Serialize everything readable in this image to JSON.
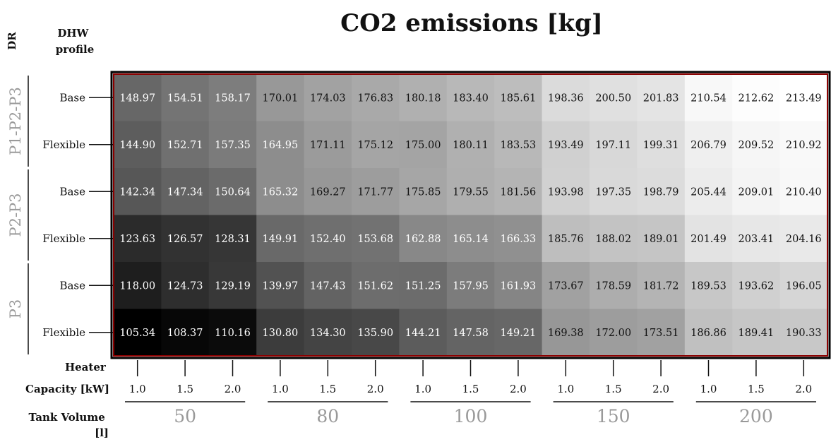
{
  "chart_data": {
    "type": "heatmap",
    "title": "CO2 emissions [kg]",
    "row_axis_labels": {
      "group": "DR",
      "profile": "DHW profile"
    },
    "column_axis_labels": {
      "capacity": "Heater Capacity [kW]",
      "volume": "Tank Volume [l]"
    },
    "row_groups": [
      {
        "label": "P1-P2-P3",
        "profiles": [
          "Base",
          "Flexible"
        ]
      },
      {
        "label": "P2-P3",
        "profiles": [
          "Base",
          "Flexible"
        ]
      },
      {
        "label": "P3",
        "profiles": [
          "Base",
          "Flexible"
        ]
      }
    ],
    "column_groups": [
      {
        "label": "50",
        "capacities": [
          "1.0",
          "1.5",
          "2.0"
        ]
      },
      {
        "label": "80",
        "capacities": [
          "1.0",
          "1.5",
          "2.0"
        ]
      },
      {
        "label": "100",
        "capacities": [
          "1.0",
          "1.5",
          "2.0"
        ]
      },
      {
        "label": "150",
        "capacities": [
          "1.0",
          "1.5",
          "2.0"
        ]
      },
      {
        "label": "200",
        "capacities": [
          "1.0",
          "1.5",
          "2.0"
        ]
      }
    ],
    "values": [
      [
        "148.97",
        "154.51",
        "158.17",
        "170.01",
        "174.03",
        "176.83",
        "180.18",
        "183.40",
        "185.61",
        "198.36",
        "200.50",
        "201.83",
        "210.54",
        "212.62",
        "213.49"
      ],
      [
        "144.90",
        "152.71",
        "157.35",
        "164.95",
        "171.11",
        "175.12",
        "175.00",
        "180.11",
        "183.53",
        "193.49",
        "197.11",
        "199.31",
        "206.79",
        "209.52",
        "210.92"
      ],
      [
        "142.34",
        "147.34",
        "150.64",
        "165.32",
        "169.27",
        "171.77",
        "175.85",
        "179.55",
        "181.56",
        "193.98",
        "197.35",
        "198.79",
        "205.44",
        "209.01",
        "210.40"
      ],
      [
        "123.63",
        "126.57",
        "128.31",
        "149.91",
        "152.40",
        "153.68",
        "162.88",
        "165.14",
        "166.33",
        "185.76",
        "188.02",
        "189.01",
        "201.49",
        "203.41",
        "204.16"
      ],
      [
        "118.00",
        "124.73",
        "129.19",
        "139.97",
        "147.43",
        "151.62",
        "151.25",
        "157.95",
        "161.93",
        "173.67",
        "178.59",
        "181.72",
        "189.53",
        "193.62",
        "196.05"
      ],
      [
        "105.34",
        "108.37",
        "110.16",
        "130.80",
        "134.30",
        "135.90",
        "144.21",
        "147.58",
        "149.21",
        "169.38",
        "172.00",
        "173.51",
        "186.86",
        "189.41",
        "190.33"
      ]
    ],
    "colormap": "grayscale (dark = low, light = high)",
    "frame_color": "#8b0000"
  }
}
